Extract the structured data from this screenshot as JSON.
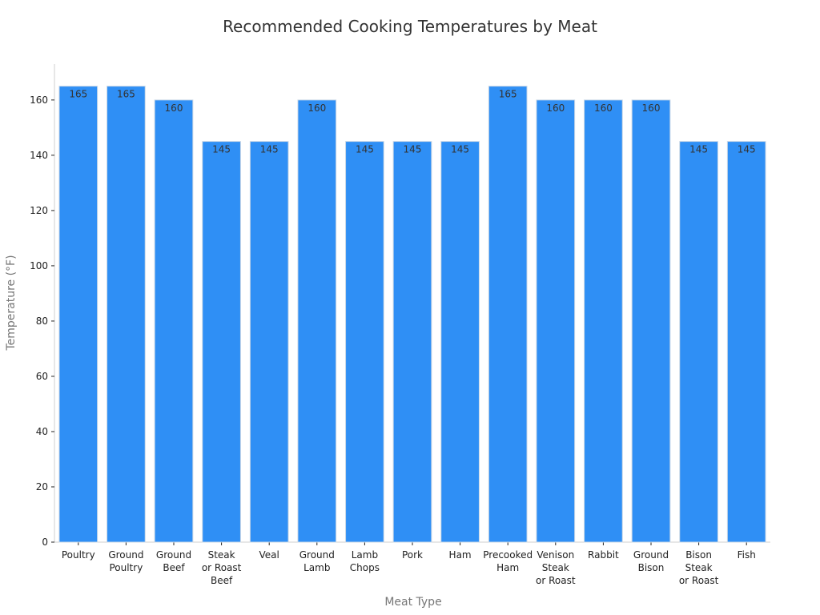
{
  "chart_data": {
    "type": "bar",
    "title": "Recommended Cooking Temperatures by Meat",
    "xlabel": "Meat Type",
    "ylabel": "Temperature (°F)",
    "categories": [
      [
        "Poultry"
      ],
      [
        "Ground",
        "Poultry"
      ],
      [
        "Ground",
        "Beef"
      ],
      [
        "Steak",
        "or Roast",
        "Beef"
      ],
      [
        "Veal"
      ],
      [
        "Ground",
        "Lamb"
      ],
      [
        "Lamb",
        "Chops"
      ],
      [
        "Pork"
      ],
      [
        "Ham"
      ],
      [
        "Precooked",
        "Ham"
      ],
      [
        "Venison",
        "Steak",
        "or Roast"
      ],
      [
        "Rabbit"
      ],
      [
        "Ground",
        "Bison"
      ],
      [
        "Bison",
        "Steak",
        "or Roast"
      ],
      [
        "Fish"
      ]
    ],
    "values": [
      165,
      165,
      160,
      145,
      145,
      160,
      145,
      145,
      145,
      165,
      160,
      160,
      160,
      145,
      145
    ],
    "ylim": [
      0,
      173
    ],
    "yticks": [
      0,
      20,
      40,
      60,
      80,
      100,
      120,
      140,
      160
    ],
    "grid": false,
    "legend": "none",
    "bar_color": "#2f8ff5",
    "bar_edge_color": "#c9d7e6"
  }
}
